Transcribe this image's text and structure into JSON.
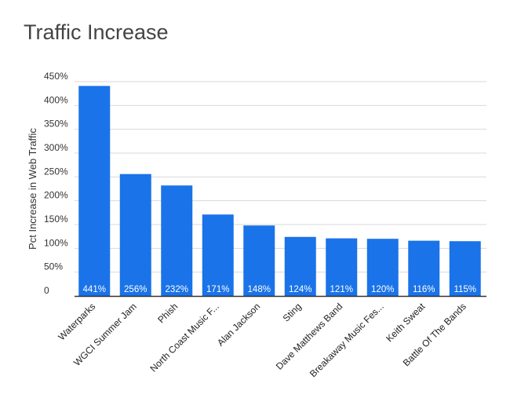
{
  "chart_data": {
    "type": "bar",
    "title": "Traffic Increase",
    "xlabel": "",
    "ylabel": "Pct Increase in Web Traffic",
    "categories": [
      "Waterparks",
      "WGCI Summer Jam",
      "Phish",
      "North Coast Music F...",
      "Alan Jackson",
      "Sting",
      "Dave Matthews Band",
      "Breakaway Music Fes...",
      "Keith Sweat",
      "Battle Of The Bands"
    ],
    "values": [
      441,
      256,
      232,
      171,
      148,
      124,
      121,
      120,
      116,
      115
    ],
    "data_labels": [
      "441%",
      "256%",
      "232%",
      "171%",
      "148%",
      "124%",
      "121%",
      "120%",
      "116%",
      "115%"
    ],
    "ylim": [
      0,
      450
    ],
    "yticks": [
      0,
      50,
      100,
      150,
      200,
      250,
      300,
      350,
      400,
      450
    ],
    "ytick_labels": [
      "0",
      "50%",
      "100%",
      "150%",
      "200%",
      "250%",
      "300%",
      "350%",
      "400%",
      "450%"
    ],
    "grid": true,
    "legend": "none",
    "colors": {
      "bar": "#1a73e8",
      "grid": "#d9d9d9",
      "axis": "#333333"
    }
  }
}
